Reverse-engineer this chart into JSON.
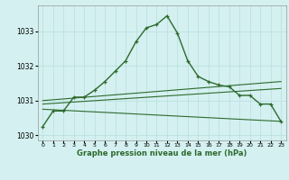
{
  "main_line": {
    "x": [
      0,
      1,
      2,
      3,
      4,
      5,
      6,
      7,
      8,
      9,
      10,
      11,
      12,
      13,
      14,
      15,
      16,
      17,
      18,
      19,
      20,
      21,
      22,
      23
    ],
    "y": [
      1030.25,
      1030.7,
      1030.7,
      1031.1,
      1031.1,
      1031.3,
      1031.55,
      1031.85,
      1032.15,
      1032.7,
      1033.1,
      1033.2,
      1033.45,
      1032.95,
      1032.15,
      1031.7,
      1031.55,
      1031.45,
      1031.4,
      1031.15,
      1031.15,
      1030.9,
      1030.9,
      1030.4
    ]
  },
  "line_upper": {
    "x": [
      0,
      23
    ],
    "y": [
      1031.0,
      1031.55
    ]
  },
  "line_middle": {
    "x": [
      0,
      23
    ],
    "y": [
      1030.9,
      1031.35
    ]
  },
  "line_lower": {
    "x": [
      0,
      23
    ],
    "y": [
      1030.75,
      1030.4
    ]
  },
  "line_color": "#2d6a2d",
  "bg_color": "#d4f0f0",
  "grid_color": "#b8dede",
  "xlabel": "Graphe pression niveau de la mer (hPa)",
  "ylim": [
    1029.85,
    1033.75
  ],
  "xlim": [
    -0.5,
    23.5
  ],
  "yticks": [
    1030,
    1031,
    1032,
    1033
  ],
  "xticks": [
    0,
    1,
    2,
    3,
    4,
    5,
    6,
    7,
    8,
    9,
    10,
    11,
    12,
    13,
    14,
    15,
    16,
    17,
    18,
    19,
    20,
    21,
    22,
    23
  ]
}
